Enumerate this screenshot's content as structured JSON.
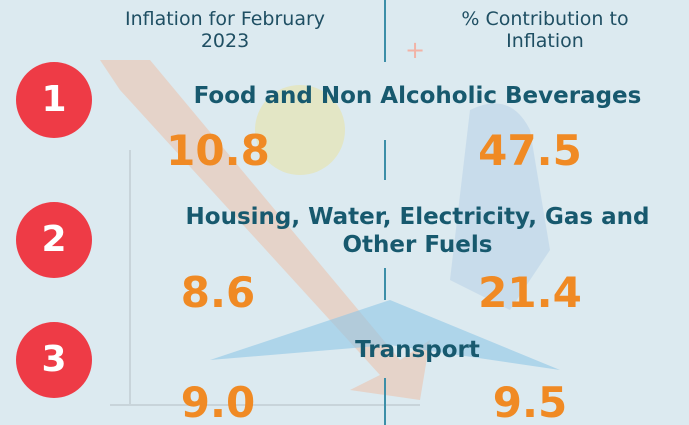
{
  "header": {
    "left": "Inflation for February 2023",
    "right": "% Contribution to Inflation"
  },
  "items": [
    {
      "rank": "1",
      "category": "Food and Non Alcoholic Beverages",
      "inflation": "10.8",
      "contribution": "47.5"
    },
    {
      "rank": "2",
      "category": "Housing, Water, Electricity, Gas and Other Fuels",
      "inflation": "8.6",
      "contribution": "21.4"
    },
    {
      "rank": "3",
      "category": "Transport",
      "inflation": "9.0",
      "contribution": "9.5"
    }
  ]
}
